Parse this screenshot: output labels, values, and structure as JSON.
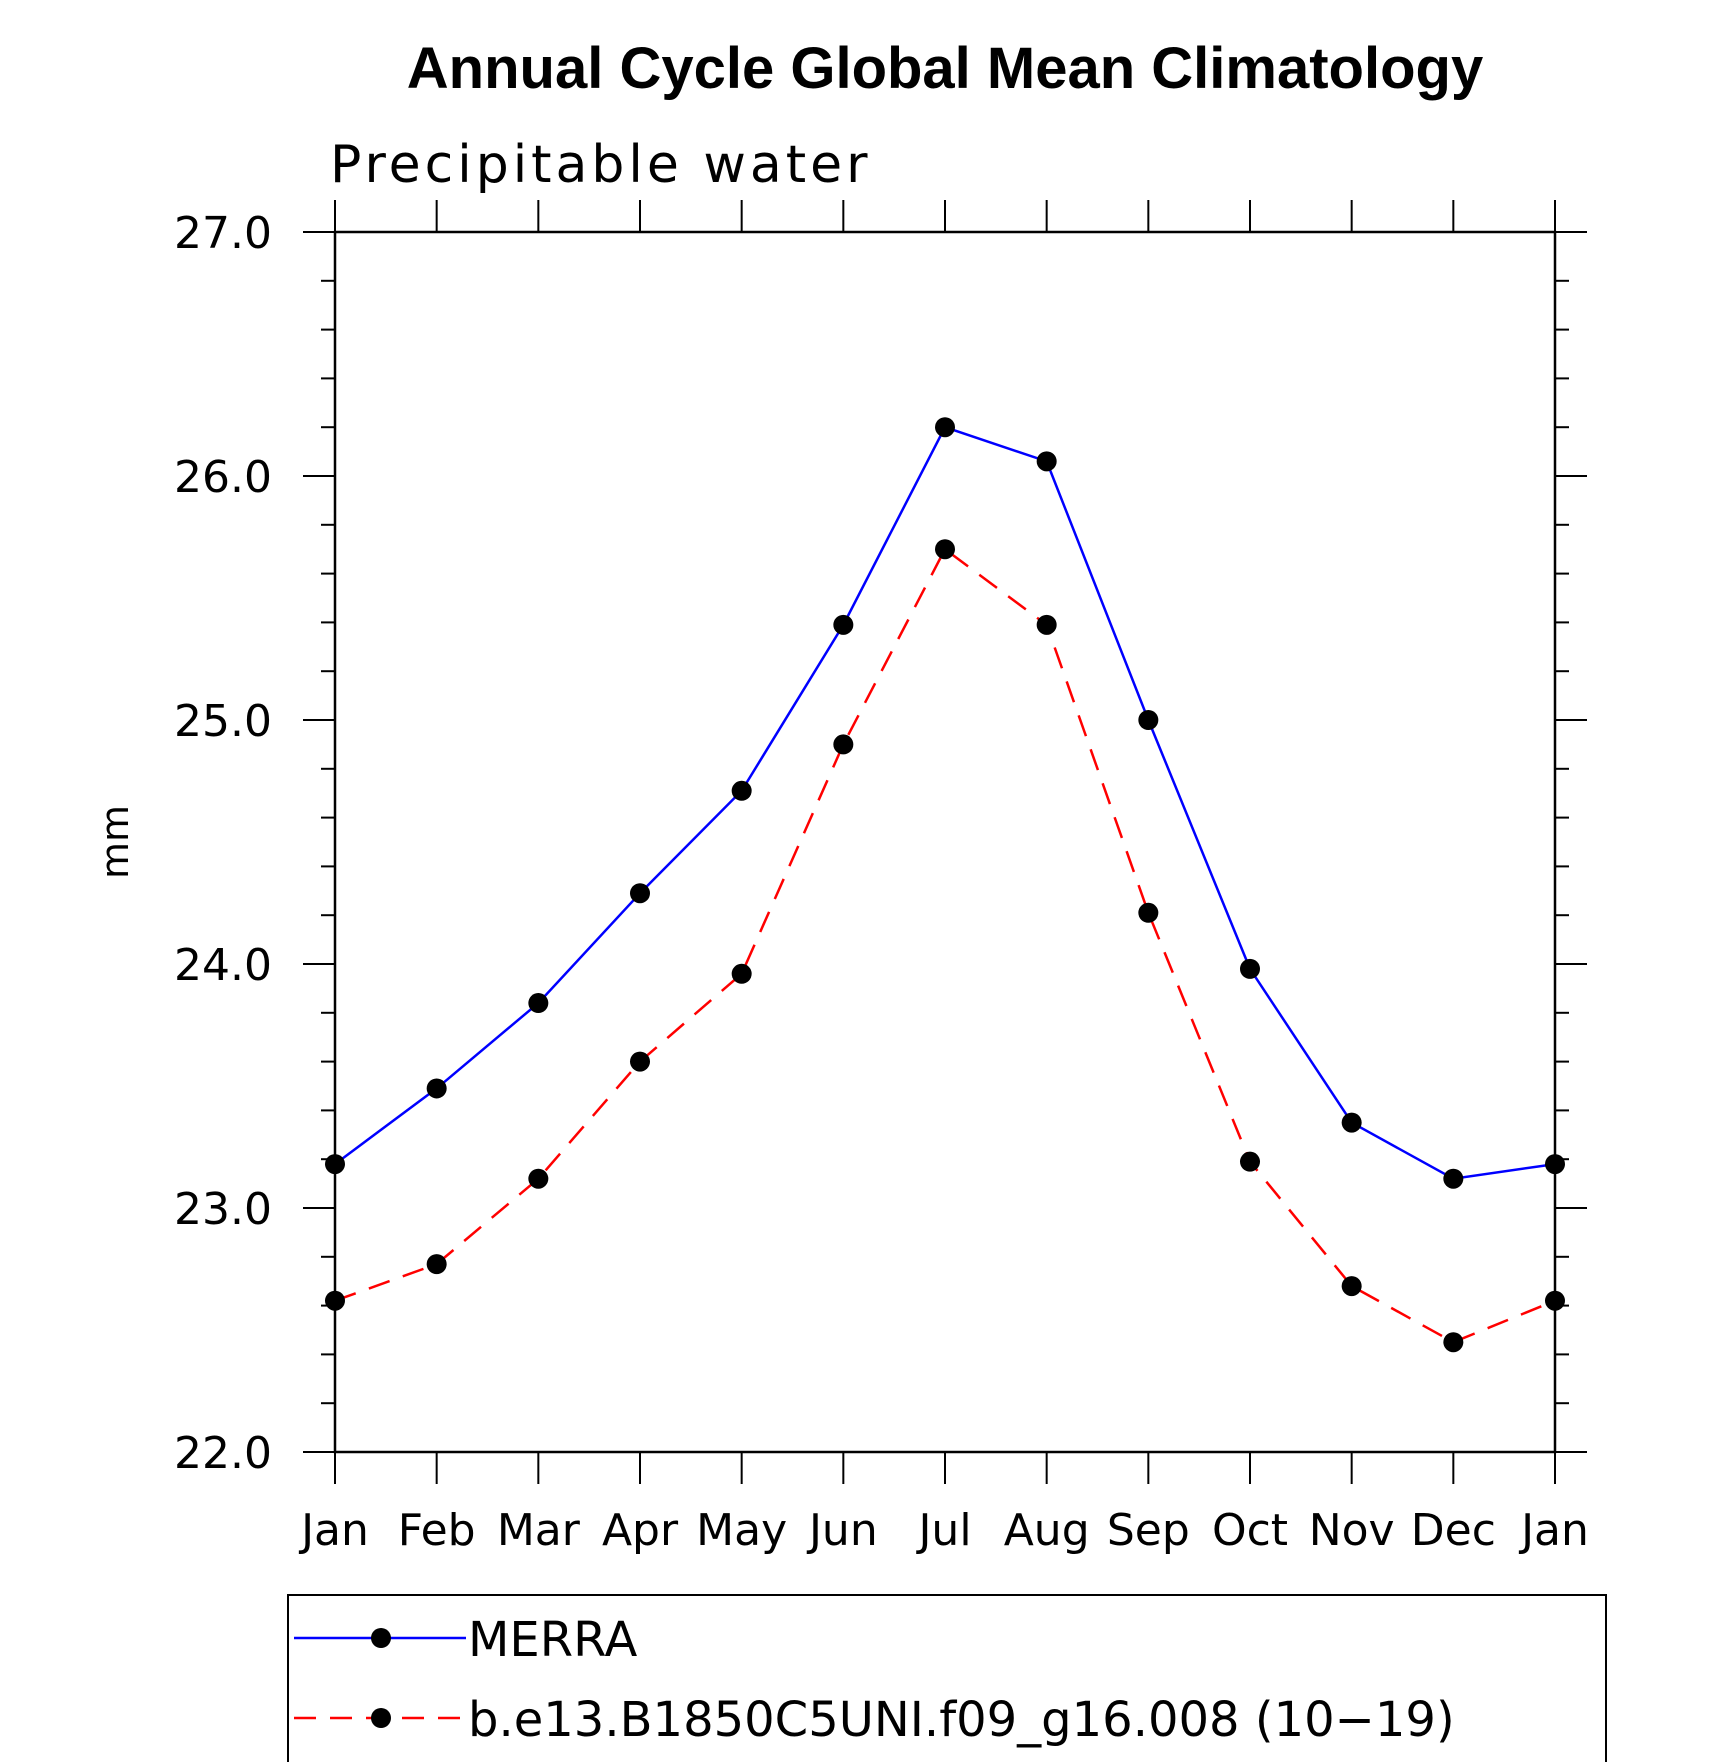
{
  "chart_data": {
    "type": "line",
    "title": "Annual Cycle Global Mean Climatology",
    "subtitle": "Precipitable water",
    "xlabel": "",
    "ylabel": "mm",
    "categories": [
      "Jan",
      "Feb",
      "Mar",
      "Apr",
      "May",
      "Jun",
      "Jul",
      "Aug",
      "Sep",
      "Oct",
      "Nov",
      "Dec",
      "Jan"
    ],
    "ylim": [
      22.0,
      27.0
    ],
    "yticks": [
      "22.0",
      "23.0",
      "24.0",
      "25.0",
      "26.0",
      "27.0"
    ],
    "y_minor_step": 0.2,
    "grid": false,
    "legend_position": "bottom",
    "series": [
      {
        "name": "MERRA",
        "color": "#0000ff",
        "line_style": "solid",
        "marker": "filled-circle",
        "values": [
          23.18,
          23.49,
          23.84,
          24.29,
          24.71,
          25.39,
          26.2,
          26.06,
          25.0,
          23.98,
          23.35,
          23.12,
          23.18
        ]
      },
      {
        "name": "b.e13.B1850C5UNI.f09_g16.008 (10−19)",
        "color": "#ff0000",
        "line_style": "dashed",
        "marker": "filled-circle",
        "values": [
          22.62,
          22.77,
          23.12,
          23.6,
          23.96,
          24.9,
          25.7,
          25.39,
          24.21,
          23.19,
          22.68,
          22.45,
          22.62
        ]
      }
    ]
  }
}
